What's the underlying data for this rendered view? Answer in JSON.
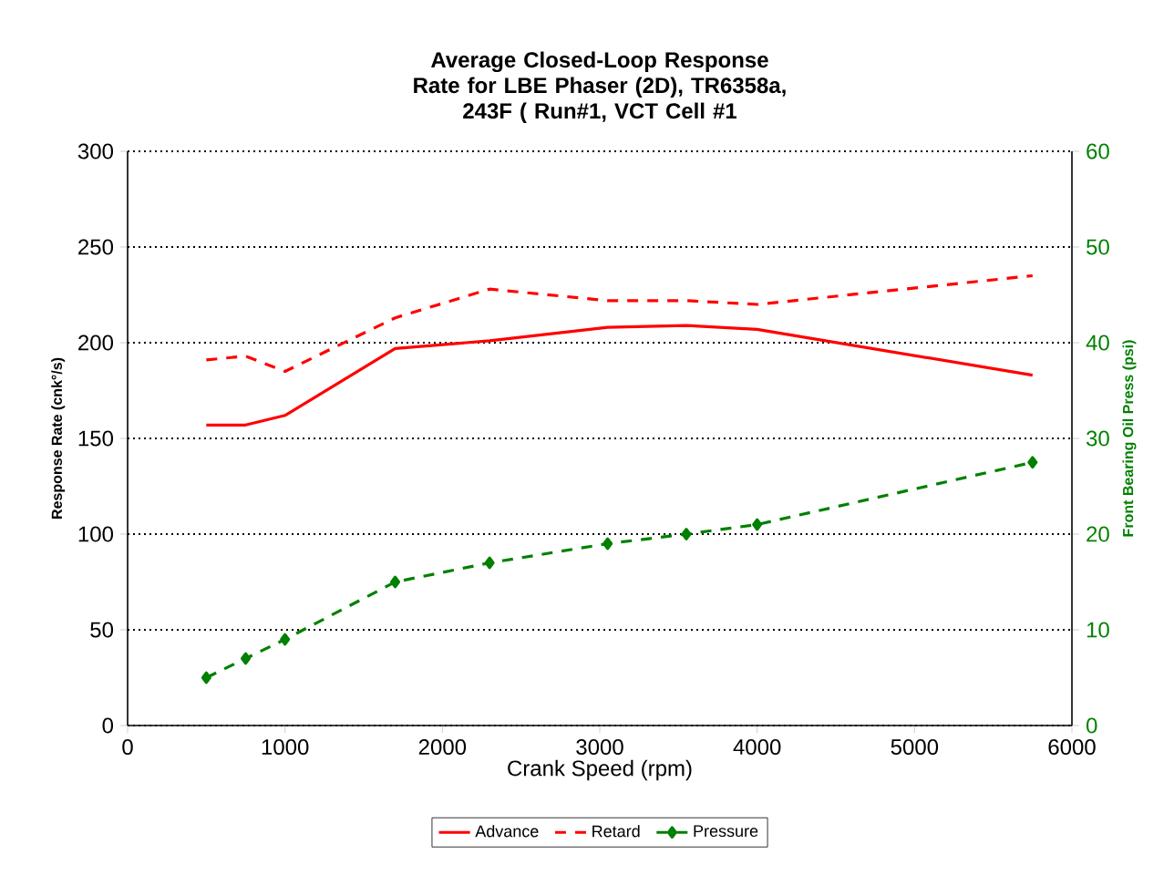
{
  "chart_data": {
    "type": "line",
    "title": "Average Closed-Loop Response Rate for LBE Phaser (2D), TR6358a, 243F ( Run#1, VCT Cell #1",
    "xlabel": "Crank Speed (rpm)",
    "ylabel": "Response Rate (cnk°/s)",
    "y2label": "Front Bearing Oil Press (psi)",
    "x": [
      500,
      750,
      1000,
      1700,
      2300,
      3050,
      3550,
      4000,
      5750
    ],
    "series": [
      {
        "name": "Advance",
        "color": "#ff0000",
        "line_style": "solid",
        "marker": "none",
        "values": [
          157,
          157,
          162,
          197,
          201,
          208,
          209,
          207,
          183
        ]
      },
      {
        "name": "Retard",
        "color": "#ff0000",
        "line_style": "dashed",
        "marker": "none",
        "values": [
          191,
          193,
          185,
          213,
          228,
          222,
          222,
          220,
          235
        ]
      },
      {
        "name": "Pressure",
        "color": "#008000",
        "line_style": "dashed",
        "marker": "diamond",
        "axis": "y2",
        "values": [
          5,
          7,
          9,
          15,
          17,
          19,
          20,
          21,
          27.5
        ]
      }
    ],
    "xlim": [
      0,
      6000
    ],
    "xticks": [
      0,
      1000,
      2000,
      3000,
      4000,
      5000,
      6000
    ],
    "ylim": [
      0,
      300
    ],
    "yticks": [
      0,
      50,
      100,
      150,
      200,
      250,
      300
    ],
    "y2lim": [
      0,
      60
    ],
    "y2ticks": [
      0,
      10,
      20,
      30,
      40,
      50,
      60
    ],
    "grid": "y",
    "legend": "bottom"
  }
}
